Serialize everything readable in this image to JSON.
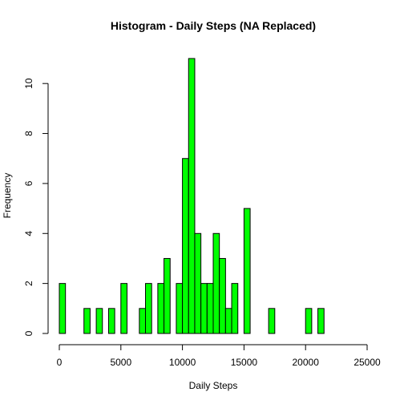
{
  "chart_data": {
    "type": "bar",
    "subtype": "histogram",
    "title": "Histogram - Daily Steps (NA Replaced)",
    "xlabel": "Daily Steps",
    "ylabel": "Frequency",
    "bin_width": 500,
    "bin_range": [
      0,
      23000
    ],
    "xlim": [
      0,
      25000
    ],
    "ylim": [
      0,
      11
    ],
    "x_ticks": [
      0,
      5000,
      10000,
      15000,
      20000,
      25000
    ],
    "y_ticks": [
      0,
      2,
      4,
      6,
      8,
      10
    ],
    "bins": [
      {
        "start": 0,
        "end": 500,
        "count": 2
      },
      {
        "start": 2000,
        "end": 2500,
        "count": 1
      },
      {
        "start": 3000,
        "end": 3500,
        "count": 1
      },
      {
        "start": 4000,
        "end": 4500,
        "count": 1
      },
      {
        "start": 5000,
        "end": 5500,
        "count": 2
      },
      {
        "start": 6500,
        "end": 7000,
        "count": 1
      },
      {
        "start": 7000,
        "end": 7500,
        "count": 2
      },
      {
        "start": 8000,
        "end": 8500,
        "count": 2
      },
      {
        "start": 8500,
        "end": 9000,
        "count": 3
      },
      {
        "start": 9500,
        "end": 10000,
        "count": 2
      },
      {
        "start": 10000,
        "end": 10500,
        "count": 7
      },
      {
        "start": 10500,
        "end": 11000,
        "count": 11
      },
      {
        "start": 11000,
        "end": 11500,
        "count": 4
      },
      {
        "start": 11500,
        "end": 12000,
        "count": 2
      },
      {
        "start": 12000,
        "end": 12500,
        "count": 2
      },
      {
        "start": 12500,
        "end": 13000,
        "count": 4
      },
      {
        "start": 13000,
        "end": 13500,
        "count": 3
      },
      {
        "start": 13500,
        "end": 14000,
        "count": 1
      },
      {
        "start": 14000,
        "end": 14500,
        "count": 2
      },
      {
        "start": 15000,
        "end": 15500,
        "count": 5
      },
      {
        "start": 17000,
        "end": 17500,
        "count": 1
      },
      {
        "start": 20000,
        "end": 20500,
        "count": 1
      },
      {
        "start": 21000,
        "end": 21500,
        "count": 1
      }
    ],
    "bar_color": "#00ff00",
    "bar_border_color": "#000000",
    "grid": false
  }
}
